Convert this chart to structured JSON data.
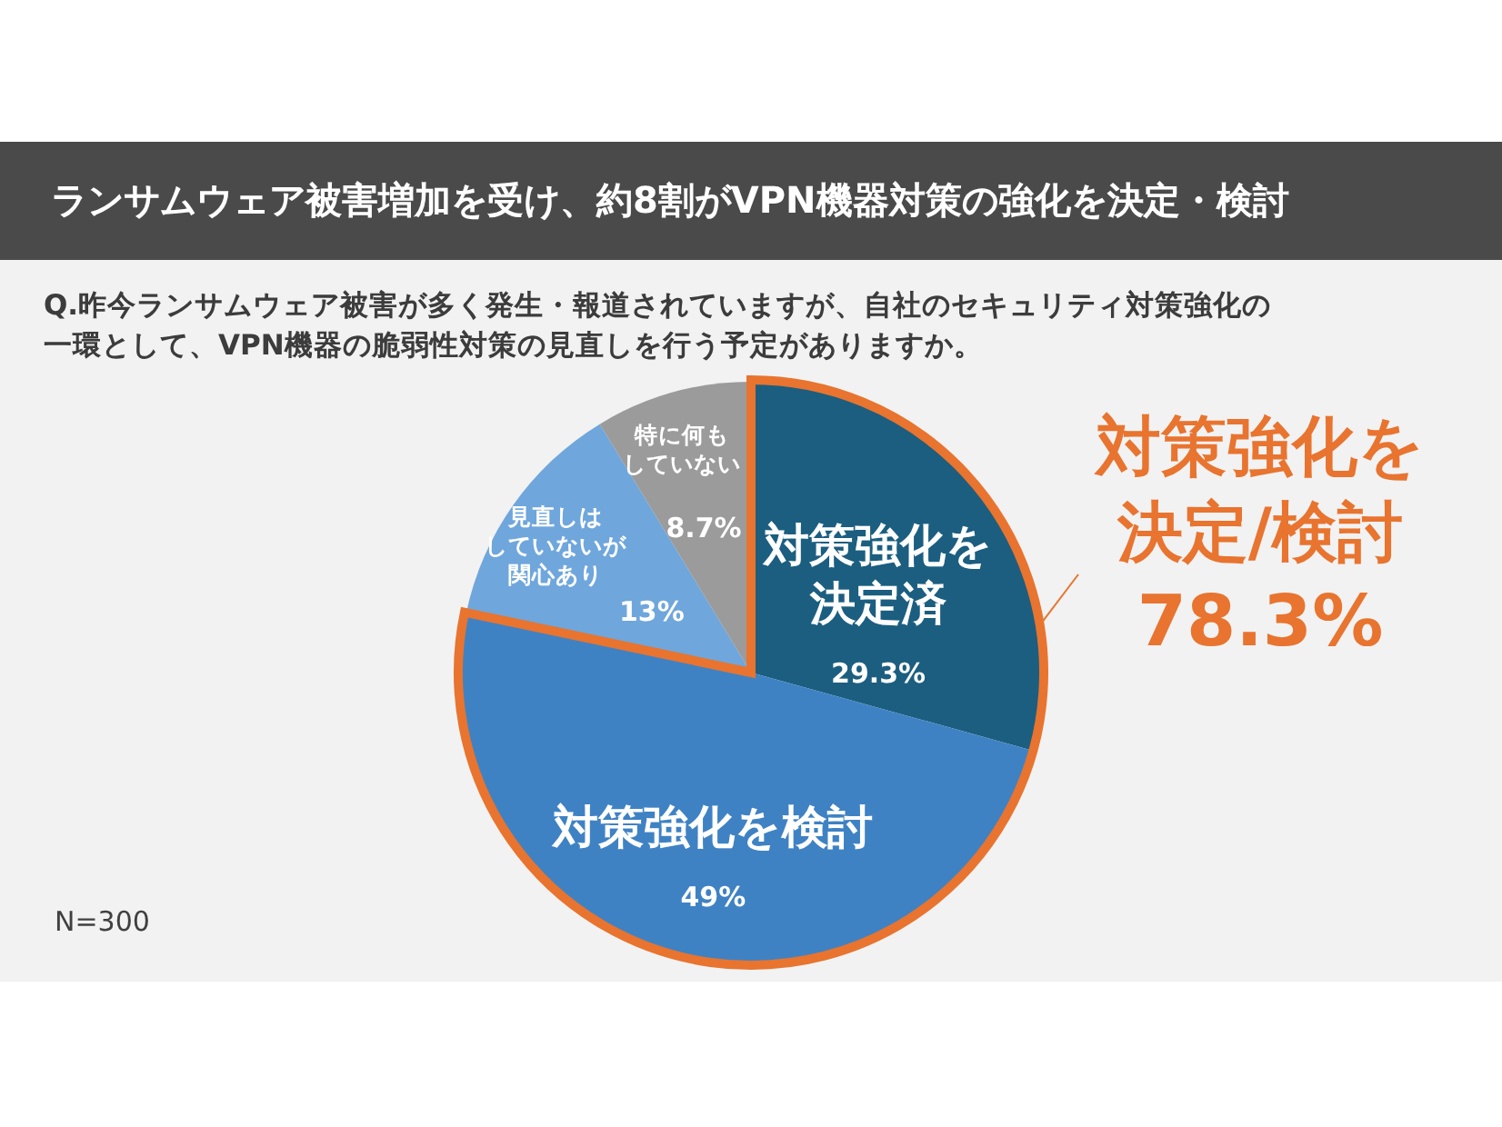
{
  "chart_data": {
    "type": "pie",
    "title": "ランサムウェア被害増加を受け、約8割がVPN機器対策の強化を決定・検討",
    "subtitle": "Q.昨今ランサムウェア被害が多く発生・報道されていますが、自社のセキュリティ対策強化の一環として、VPN機器の脆弱性対策の見直しを行う予定がありますか。",
    "categories": [
      "対策強化を決定済",
      "対策強化を検討",
      "見直しはしていないが関心あり",
      "特に何もしていない"
    ],
    "values": [
      29.3,
      49,
      13,
      8.7
    ],
    "colors": [
      "#1b5e80",
      "#3f82c4",
      "#6fa6dc",
      "#9b9b9b"
    ],
    "value_labels": [
      "29.3%",
      "49%",
      "13%",
      "8.7%"
    ],
    "annotations": [
      "対策強化を決定/検討",
      "78.3%",
      "N=300"
    ]
  }
}
